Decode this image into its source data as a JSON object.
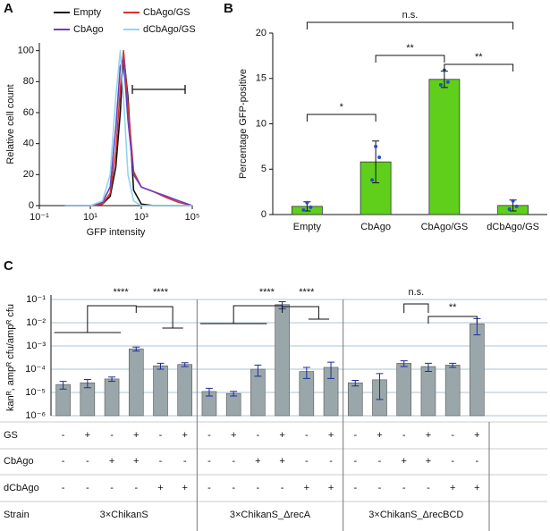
{
  "chart_data": [
    {
      "type": "line",
      "panel": "A",
      "xlabel": "GFP intensity",
      "ylabel": "Relative cell count",
      "log_x": true,
      "xlim": [
        0.1,
        100000
      ],
      "xticks": [
        {
          "value": 0.1,
          "label": "10⁻¹"
        },
        {
          "value": 10,
          "label": "10¹"
        },
        {
          "value": 1000,
          "label": "10³"
        },
        {
          "value": 100000,
          "label": "10⁵"
        }
      ],
      "ylim": [
        0,
        105
      ],
      "yticks": [
        0,
        20,
        40,
        60,
        80,
        100
      ],
      "x": [
        1,
        10,
        30,
        60,
        100,
        150,
        200,
        300,
        500,
        1000,
        3000,
        10000,
        30000,
        100000
      ],
      "series": [
        {
          "name": "Empty",
          "color": "#111111",
          "values": [
            0,
            0,
            1,
            6,
            25,
            60,
            98,
            70,
            10,
            1,
            0,
            0,
            0,
            0
          ]
        },
        {
          "name": "CbAgo/GS",
          "color": "#d9342b",
          "values": [
            0,
            0,
            1,
            8,
            35,
            75,
            100,
            65,
            22,
            12,
            9,
            5,
            2,
            0
          ]
        },
        {
          "name": "CbAgo",
          "color": "#6b3fc0",
          "values": [
            0,
            0,
            2,
            12,
            50,
            90,
            95,
            55,
            20,
            12,
            9,
            6,
            3,
            0
          ]
        },
        {
          "name": "dCbAgo/GS",
          "color": "#8fd6f2",
          "values": [
            0,
            0,
            3,
            20,
            70,
            100,
            70,
            20,
            3,
            0,
            0,
            0,
            0,
            0
          ]
        }
      ]
    },
    {
      "type": "bar",
      "panel": "B",
      "ylabel": "Percentage GFP-positive",
      "color": "#5fcf1c",
      "point_color": "#2b4bd1",
      "categories": [
        "Empty",
        "CbAgo",
        "CbAgo/GS",
        "dCbAgo/GS"
      ],
      "values": [
        0.9,
        5.8,
        14.9,
        1.0
      ],
      "errors": [
        0.5,
        2.3,
        0.9,
        0.6
      ],
      "points": [
        [
          0.5,
          1.3,
          0.8
        ],
        [
          3.8,
          7.5,
          6.3
        ],
        [
          14.3,
          15.9,
          14.6
        ],
        [
          0.6,
          1.5,
          0.9
        ]
      ],
      "ylim": [
        0,
        20
      ],
      "yticks": [
        0,
        5,
        10,
        15,
        20
      ],
      "significance": [
        "*",
        "**",
        "**",
        "n.s."
      ]
    },
    {
      "type": "bar",
      "panel": "C",
      "ylabel": "kanᴿ, ampᴿ cfu/ampᴿ cfu",
      "color": "#9aa7aa",
      "log_y": true,
      "grid": true,
      "ylim": [
        1e-06,
        0.1
      ],
      "yticks": [
        {
          "value": 1e-06,
          "label": "10⁻⁶"
        },
        {
          "value": 1e-05,
          "label": "10⁻⁵"
        },
        {
          "value": 0.0001,
          "label": "10⁻⁴"
        },
        {
          "value": 0.001,
          "label": "10⁻³"
        },
        {
          "value": 0.01,
          "label": "10⁻²"
        },
        {
          "value": 0.1,
          "label": "10⁻¹"
        }
      ],
      "values": [
        2.2e-05,
        2.6e-05,
        3.8e-05,
        0.00075,
        0.00014,
        0.00016,
        1.1e-05,
        9e-06,
        0.0001,
        0.06,
        8e-05,
        0.00012,
        2.6e-05,
        3.5e-05,
        0.00018,
        0.00013,
        0.00015,
        0.009
      ],
      "errors": [
        8e-06,
        1e-05,
        8e-06,
        0.00015,
        4e-05,
        3e-05,
        4e-06,
        2e-06,
        5e-05,
        0.02,
        4e-05,
        8e-05,
        7e-06,
        3e-05,
        5e-05,
        5e-05,
        3e-05,
        0.006
      ],
      "significance": [
        "****",
        "****",
        "****",
        "****",
        "n.s.",
        "**"
      ],
      "table": {
        "rows": [
          {
            "label": "GS",
            "cells": [
              "-",
              "+",
              "-",
              "+",
              "-",
              "+",
              "-",
              "+",
              "-",
              "+",
              "-",
              "+",
              "-",
              "+",
              "-",
              "+",
              "-",
              "+"
            ]
          },
          {
            "label": "CbAgo",
            "cells": [
              "-",
              "-",
              "+",
              "+",
              "-",
              "-",
              "-",
              "-",
              "+",
              "+",
              "-",
              "-",
              "-",
              "-",
              "+",
              "+",
              "-",
              "-"
            ]
          },
          {
            "label": "dCbAgo",
            "cells": [
              "-",
              "-",
              "-",
              "-",
              "+",
              "+",
              "-",
              "-",
              "-",
              "-",
              "+",
              "+",
              "-",
              "-",
              "-",
              "-",
              "+",
              "+"
            ]
          }
        ],
        "strain_label": "Strain",
        "strains": [
          "3×ChikanS",
          "3×ChikanS_ΔrecA",
          "3×ChikanS_ΔrecBCD"
        ]
      }
    }
  ]
}
